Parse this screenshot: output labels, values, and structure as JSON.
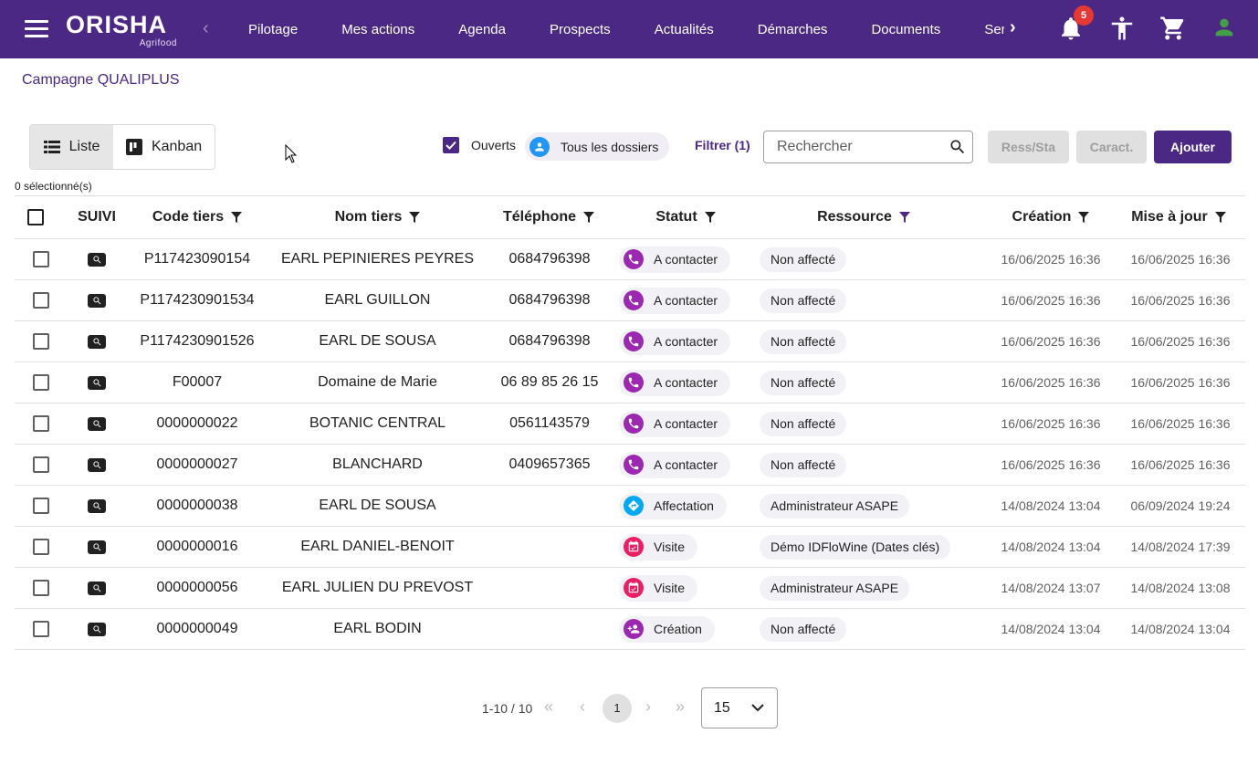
{
  "header": {
    "logo_main": "ORISHA",
    "logo_sub": "Agrifood",
    "nav": [
      "Pilotage",
      "Mes actions",
      "Agenda",
      "Prospects",
      "Actualités",
      "Démarches",
      "Documents",
      "Services"
    ],
    "notification_count": "5",
    "bg_color": "#4a2884"
  },
  "breadcrumb": "Campagne QUALIPLUS",
  "view": {
    "list_label": "Liste",
    "kanban_label": "Kanban"
  },
  "filters": {
    "ouverts_label": "Ouverts",
    "dossiers_label": "Tous les dossiers",
    "filter_label": "Filtrer (1)",
    "search_placeholder": "Rechercher",
    "btn_ress": "Ress/Sta",
    "btn_caract": "Caract.",
    "btn_add": "Ajouter"
  },
  "selection_count": "0 sélectionné(s)",
  "table": {
    "columns": {
      "suivi": "SUIVI",
      "code": "Code tiers",
      "nom": "Nom tiers",
      "tel": "Téléphone",
      "statut": "Statut",
      "ressource": "Ressource",
      "creation": "Création",
      "maj": "Mise à jour"
    },
    "rows": [
      {
        "code": "P117423090154",
        "nom": "EARL PEPINIERES PEYRES",
        "tel": "0684796398",
        "statut": "A contacter",
        "statut_icon": "phone-icon",
        "ressource": "Non affecté",
        "creation": "16/06/2025 16:36",
        "maj": "16/06/2025 16:36"
      },
      {
        "code": "P1174230901534",
        "nom": "EARL GUILLON",
        "tel": "0684796398",
        "statut": "A contacter",
        "statut_icon": "phone-icon",
        "ressource": "Non affecté",
        "creation": "16/06/2025 16:36",
        "maj": "16/06/2025 16:36"
      },
      {
        "code": "P1174230901526",
        "nom": "EARL DE SOUSA",
        "tel": "0684796398",
        "statut": "A contacter",
        "statut_icon": "phone-icon",
        "ressource": "Non affecté",
        "creation": "16/06/2025 16:36",
        "maj": "16/06/2025 16:36"
      },
      {
        "code": "F00007",
        "nom": "Domaine de Marie",
        "tel": "06 89 85 26 15",
        "statut": "A contacter",
        "statut_icon": "phone-icon",
        "ressource": "Non affecté",
        "creation": "16/06/2025 16:36",
        "maj": "16/06/2025 16:36"
      },
      {
        "code": "0000000022",
        "nom": "BOTANIC CENTRAL",
        "tel": "0561143579",
        "statut": "A contacter",
        "statut_icon": "phone-icon",
        "ressource": "Non affecté",
        "creation": "16/06/2025 16:36",
        "maj": "16/06/2025 16:36"
      },
      {
        "code": "0000000027",
        "nom": "BLANCHARD",
        "tel": "0409657365",
        "statut": "A contacter",
        "statut_icon": "phone-icon",
        "ressource": "Non affecté",
        "creation": "16/06/2025 16:36",
        "maj": "16/06/2025 16:36"
      },
      {
        "code": "0000000038",
        "nom": "EARL DE SOUSA",
        "tel": "",
        "statut": "Affectation",
        "statut_icon": "direction-icon",
        "ressource": "Administrateur ASAPE",
        "creation": "14/08/2024 13:04",
        "maj": "06/09/2024 19:24"
      },
      {
        "code": "0000000016",
        "nom": "EARL DANIEL-BENOIT",
        "tel": "",
        "statut": "Visite",
        "statut_icon": "calendar-check-icon",
        "ressource": "Démo IDFloWine (Dates clés)",
        "creation": "14/08/2024 13:04",
        "maj": "14/08/2024 17:39"
      },
      {
        "code": "0000000056",
        "nom": "EARL JULIEN DU PREVOST",
        "tel": "",
        "statut": "Visite",
        "statut_icon": "calendar-check-icon",
        "ressource": "Administrateur ASAPE",
        "creation": "14/08/2024 13:07",
        "maj": "14/08/2024 13:08"
      },
      {
        "code": "0000000049",
        "nom": "EARL BODIN",
        "tel": "",
        "statut": "Création",
        "statut_icon": "user-add-icon",
        "ressource": "Non affecté",
        "creation": "14/08/2024 13:04",
        "maj": "14/08/2024 13:04"
      }
    ],
    "status_colors": {
      "phone-icon": "#9c27b0",
      "direction-icon": "#03a9f4",
      "calendar-check-icon": "#e91e63",
      "user-add-icon": "#9c27b0"
    }
  },
  "pagination": {
    "range": "1-10 / 10",
    "page": "1",
    "page_size": "15"
  }
}
